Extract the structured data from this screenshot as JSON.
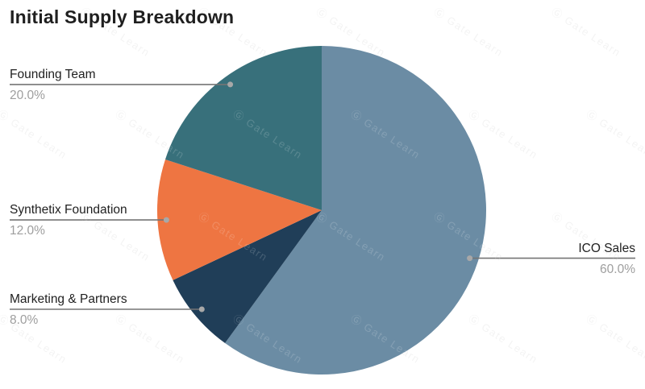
{
  "title": "Initial Supply Breakdown",
  "watermark": {
    "logo_glyph": "Ⓖ",
    "text": "Gate Learn"
  },
  "colors": {
    "background": "#ffffff",
    "title_text": "#1f1f1f",
    "label_text": "#212121",
    "pct_text": "#9e9e9e",
    "leader_line": "#757575",
    "leader_dot": "#a8a8a8"
  },
  "chart_data": {
    "type": "pie",
    "title": "Initial Supply Breakdown",
    "start_angle_deg": 0,
    "direction": "clockwise",
    "legend": "none",
    "labels_position": "outside-leader-lines",
    "slices": [
      {
        "id": "ico-sales",
        "label": "ICO Sales",
        "value": 60.0,
        "pct_label": "60.0%",
        "color": "#6B8CA4"
      },
      {
        "id": "marketing-partners",
        "label": "Marketing & Partners",
        "value": 8.0,
        "pct_label": "8.0%",
        "color": "#203E58"
      },
      {
        "id": "synthetix-foundation",
        "label": "Synthetix Foundation",
        "value": 12.0,
        "pct_label": "12.0%",
        "color": "#EE7542"
      },
      {
        "id": "founding-team",
        "label": "Founding Team",
        "value": 20.0,
        "pct_label": "20.0%",
        "color": "#38707B"
      }
    ]
  }
}
